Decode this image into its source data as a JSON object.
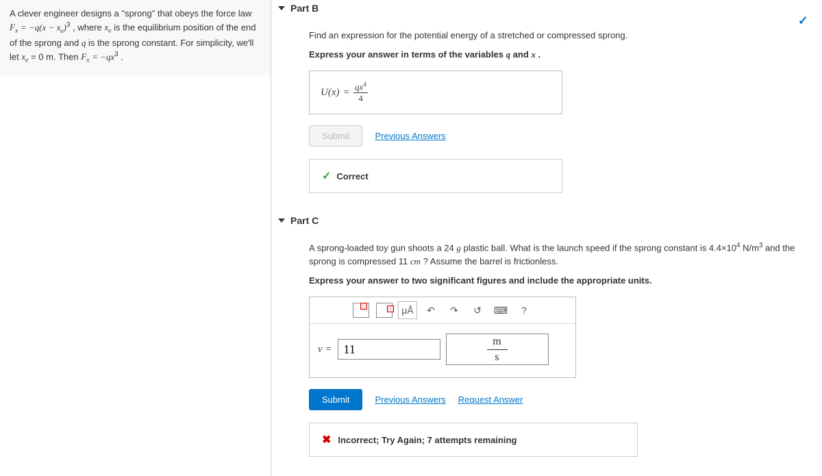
{
  "left": {
    "p1a": "A clever engineer designs a \"sprong\" that obeys the force law ",
    "eq1_lhs": "F",
    "eq1_sub": "x",
    "eq1_mid": " = −q(x − x",
    "eq1_sub2": "e",
    "eq1_rhs": ")",
    "eq1_sup": "3",
    "p1b": ", where ",
    "xe": "x",
    "xesub": "e",
    "p1c": " is the equilibrium position of the end of the sprong and ",
    "q": "q",
    "p1d": " is the sprong constant. For simplicity, we'll let ",
    "xe2": "x",
    "xe2sub": "e",
    "p1e": " = 0 m. Then ",
    "eq2_lhs": "F",
    "eq2_sub": "x",
    "eq2_mid": " = −qx",
    "eq2_sup": "3",
    "p1f": "."
  },
  "partB": {
    "title": "Part B",
    "prompt": "Find an expression for the potential energy of a stretched or compressed sprong.",
    "instr_a": "Express your answer in terms of the variables ",
    "var1": "q",
    "instr_b": " and ",
    "var2": "x",
    "instr_c": ".",
    "answer_lhs": "U(x)",
    "answer_eq": "=",
    "answer_num": "qx",
    "answer_sup": "4",
    "answer_den": "4",
    "submit": "Submit",
    "prev": "Previous Answers",
    "correct": "Correct"
  },
  "partC": {
    "title": "Part C",
    "prompt_a": "A sprong-loaded toy gun shoots a 24 ",
    "unit_g": "g",
    "prompt_b": " plastic ball. What is the launch speed if the sprong constant is 4.4×10",
    "sup4": "4",
    "unit_nm3": " N/m",
    "sup3": "3",
    "prompt_c": " and the sprong is compressed 11 ",
    "unit_cm": "cm",
    "prompt_d": " ? Assume the barrel is frictionless.",
    "instr": "Express your answer to two significant figures and include the appropriate units.",
    "toolbar": {
      "muA": "μÅ",
      "undo": "↶",
      "redo": "↷",
      "reset": "↺",
      "kbd": "⌨",
      "help": "?"
    },
    "var_label": "v =",
    "value": "11",
    "unit_num": "m",
    "unit_den": "s",
    "submit": "Submit",
    "prev": "Previous Answers",
    "req": "Request Answer",
    "incorrect": "Incorrect; Try Again; 7 attempts remaining"
  }
}
